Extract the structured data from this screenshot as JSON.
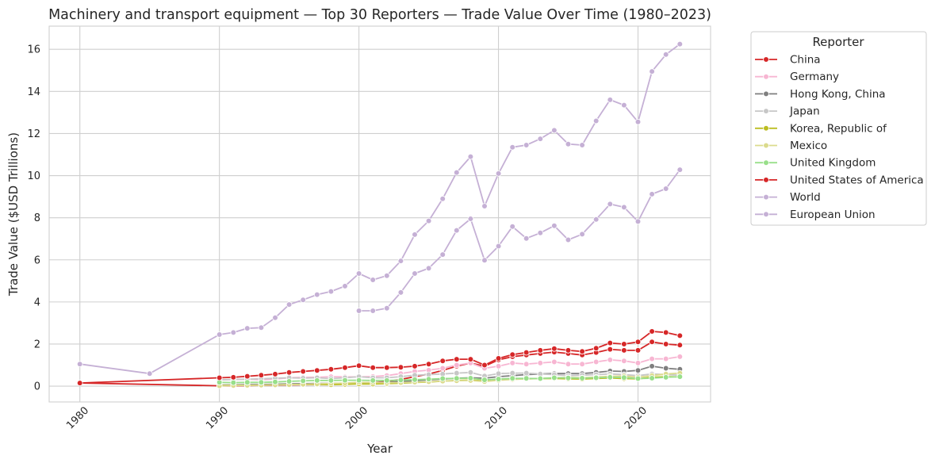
{
  "chart_data": {
    "type": "line",
    "title": "Machinery and transport equipment — Top 30 Reporters — Trade Value Over Time (1980–2023)",
    "xlabel": "Year",
    "ylabel": "Trade Value ($USD Trillions)",
    "xlim": [
      1977.8,
      2025.2
    ],
    "ylim": [
      -0.75,
      17.1
    ],
    "x_ticks": [
      1980,
      1990,
      2000,
      2010,
      2020
    ],
    "y_ticks": [
      0,
      2,
      4,
      6,
      8,
      10,
      12,
      14,
      16
    ],
    "grid": true,
    "legend_title": "Reporter",
    "legend_position": "outside-right",
    "series": [
      {
        "name": "China",
        "color": "#d62728",
        "x": [
          1980,
          1990,
          1991,
          1992,
          1993,
          1994,
          1995,
          1996,
          1997,
          1998,
          1999,
          2000,
          2001,
          2002,
          2003,
          2004,
          2005,
          2006,
          2007,
          2008,
          2009,
          2010,
          2011,
          2012,
          2013,
          2014,
          2015,
          2016,
          2017,
          2018,
          2019,
          2020,
          2021,
          2022,
          2023
        ],
        "y": [
          0.15,
          0.02,
          0.02,
          0.03,
          0.04,
          0.05,
          0.06,
          0.07,
          0.08,
          0.09,
          0.11,
          0.14,
          0.17,
          0.22,
          0.32,
          0.45,
          0.58,
          0.75,
          0.95,
          1.1,
          0.95,
          1.25,
          1.4,
          1.48,
          1.55,
          1.62,
          1.55,
          1.48,
          1.6,
          1.75,
          1.7,
          1.7,
          2.1,
          2.0,
          1.95
        ]
      },
      {
        "name": "Germany",
        "color": "#f7b6d2",
        "x": [
          1990,
          1991,
          1992,
          1993,
          1994,
          1995,
          1996,
          1997,
          1998,
          1999,
          2000,
          2001,
          2002,
          2003,
          2004,
          2005,
          2006,
          2007,
          2008,
          2009,
          2010,
          2011,
          2012,
          2013,
          2014,
          2015,
          2016,
          2017,
          2018,
          2019,
          2020,
          2021,
          2022,
          2023
        ],
        "y": [
          0.3,
          0.32,
          0.34,
          0.3,
          0.34,
          0.4,
          0.42,
          0.42,
          0.45,
          0.44,
          0.44,
          0.46,
          0.5,
          0.6,
          0.7,
          0.76,
          0.85,
          1.0,
          1.1,
          0.85,
          0.95,
          1.1,
          1.05,
          1.1,
          1.15,
          1.05,
          1.05,
          1.15,
          1.25,
          1.2,
          1.1,
          1.3,
          1.3,
          1.4
        ]
      },
      {
        "name": "Hong Kong, China",
        "color": "#7f7f7f",
        "x": [
          1990,
          1991,
          1992,
          1993,
          1994,
          1995,
          1996,
          1997,
          1998,
          1999,
          2000,
          2001,
          2002,
          2003,
          2004,
          2005,
          2006,
          2007,
          2008,
          2009,
          2010,
          2011,
          2012,
          2013,
          2014,
          2015,
          2016,
          2017,
          2018,
          2019,
          2020,
          2021,
          2022,
          2023
        ],
        "y": [
          0.05,
          0.06,
          0.07,
          0.08,
          0.09,
          0.11,
          0.12,
          0.13,
          0.13,
          0.14,
          0.17,
          0.17,
          0.19,
          0.22,
          0.26,
          0.3,
          0.34,
          0.38,
          0.4,
          0.38,
          0.45,
          0.5,
          0.55,
          0.58,
          0.6,
          0.6,
          0.6,
          0.65,
          0.72,
          0.7,
          0.75,
          0.95,
          0.85,
          0.8
        ]
      },
      {
        "name": "Japan",
        "color": "#c7c7c7",
        "x": [
          1990,
          1991,
          1992,
          1993,
          1994,
          1995,
          1996,
          1997,
          1998,
          1999,
          2000,
          2001,
          2002,
          2003,
          2004,
          2005,
          2006,
          2007,
          2008,
          2009,
          2010,
          2011,
          2012,
          2013,
          2014,
          2015,
          2016,
          2017,
          2018,
          2019,
          2020,
          2021,
          2022,
          2023
        ],
        "y": [
          0.3,
          0.32,
          0.33,
          0.35,
          0.38,
          0.4,
          0.38,
          0.4,
          0.36,
          0.4,
          0.45,
          0.4,
          0.4,
          0.45,
          0.52,
          0.55,
          0.58,
          0.62,
          0.65,
          0.48,
          0.6,
          0.62,
          0.62,
          0.58,
          0.55,
          0.5,
          0.52,
          0.55,
          0.58,
          0.55,
          0.5,
          0.58,
          0.55,
          0.52
        ]
      },
      {
        "name": "Korea, Republic of",
        "color": "#bcbd22",
        "x": [
          1990,
          1991,
          1992,
          1993,
          1994,
          1995,
          1996,
          1997,
          1998,
          1999,
          2000,
          2001,
          2002,
          2003,
          2004,
          2005,
          2006,
          2007,
          2008,
          2009,
          2010,
          2011,
          2012,
          2013,
          2014,
          2015,
          2016,
          2017,
          2018,
          2019,
          2020,
          2021,
          2022,
          2023
        ],
        "y": [
          0.03,
          0.04,
          0.04,
          0.05,
          0.06,
          0.08,
          0.08,
          0.08,
          0.07,
          0.09,
          0.11,
          0.1,
          0.12,
          0.14,
          0.18,
          0.2,
          0.24,
          0.27,
          0.29,
          0.25,
          0.31,
          0.34,
          0.35,
          0.36,
          0.37,
          0.35,
          0.34,
          0.37,
          0.39,
          0.36,
          0.35,
          0.42,
          0.45,
          0.44
        ]
      },
      {
        "name": "Mexico",
        "color": "#dbdb8d",
        "x": [
          1990,
          1991,
          1992,
          1993,
          1994,
          1995,
          1996,
          1997,
          1998,
          1999,
          2000,
          2001,
          2002,
          2003,
          2004,
          2005,
          2006,
          2007,
          2008,
          2009,
          2010,
          2011,
          2012,
          2013,
          2014,
          2015,
          2016,
          2017,
          2018,
          2019,
          2020,
          2021,
          2022,
          2023
        ],
        "y": [
          0.02,
          0.03,
          0.04,
          0.05,
          0.06,
          0.07,
          0.09,
          0.11,
          0.13,
          0.15,
          0.18,
          0.17,
          0.17,
          0.17,
          0.19,
          0.21,
          0.24,
          0.26,
          0.27,
          0.22,
          0.28,
          0.32,
          0.35,
          0.37,
          0.4,
          0.41,
          0.4,
          0.43,
          0.47,
          0.48,
          0.42,
          0.5,
          0.58,
          0.62
        ]
      },
      {
        "name": "United Kingdom",
        "color": "#98df8a",
        "x": [
          1990,
          1991,
          1992,
          1993,
          1994,
          1995,
          1996,
          1997,
          1998,
          1999,
          2000,
          2001,
          2002,
          2003,
          2004,
          2005,
          2006,
          2007,
          2008,
          2009,
          2010,
          2011,
          2012,
          2013,
          2014,
          2015,
          2016,
          2017,
          2018,
          2019,
          2020,
          2021,
          2022,
          2023
        ],
        "y": [
          0.18,
          0.17,
          0.18,
          0.18,
          0.2,
          0.23,
          0.25,
          0.27,
          0.27,
          0.28,
          0.28,
          0.27,
          0.27,
          0.29,
          0.31,
          0.33,
          0.36,
          0.37,
          0.38,
          0.3,
          0.34,
          0.37,
          0.37,
          0.36,
          0.4,
          0.39,
          0.38,
          0.4,
          0.42,
          0.41,
          0.36,
          0.38,
          0.42,
          0.45
        ]
      },
      {
        "name": "United States of America",
        "color": "#d62728",
        "x": [
          1980,
          1990,
          1991,
          1992,
          1993,
          1994,
          1995,
          1996,
          1997,
          1998,
          1999,
          2000,
          2001,
          2002,
          2003,
          2004,
          2005,
          2006,
          2007,
          2008,
          2009,
          2010,
          2011,
          2012,
          2013,
          2014,
          2015,
          2016,
          2017,
          2018,
          2019,
          2020,
          2021,
          2022,
          2023
        ],
        "y": [
          0.15,
          0.4,
          0.42,
          0.47,
          0.52,
          0.57,
          0.65,
          0.7,
          0.75,
          0.8,
          0.88,
          0.97,
          0.88,
          0.88,
          0.9,
          0.95,
          1.05,
          1.2,
          1.28,
          1.28,
          1.0,
          1.32,
          1.5,
          1.6,
          1.7,
          1.78,
          1.7,
          1.65,
          1.8,
          2.05,
          2.0,
          2.1,
          2.6,
          2.55,
          2.4
        ]
      },
      {
        "name": "World",
        "color": "#c5b0d5",
        "x": [
          1980,
          1985,
          1990,
          1991,
          1992,
          1993,
          1994,
          1995,
          1996,
          1997,
          1998,
          1999,
          2000,
          2001,
          2002,
          2003,
          2004,
          2005,
          2006,
          2007,
          2008,
          2009,
          2010,
          2011,
          2012,
          2013,
          2014,
          2015,
          2016,
          2017,
          2018,
          2019,
          2020,
          2021,
          2022,
          2023
        ],
        "y": [
          1.05,
          0.6,
          2.45,
          2.55,
          2.75,
          2.78,
          3.25,
          3.88,
          4.1,
          4.35,
          4.5,
          4.75,
          5.35,
          5.05,
          5.25,
          5.95,
          7.2,
          7.85,
          8.9,
          10.15,
          10.9,
          8.55,
          10.1,
          11.35,
          11.45,
          11.75,
          12.15,
          11.5,
          11.45,
          12.6,
          13.6,
          13.35,
          12.55,
          14.95,
          15.75,
          16.25
        ]
      },
      {
        "name": "European Union",
        "color": "#c5b0d5",
        "x": [
          2000,
          2001,
          2002,
          2003,
          2004,
          2005,
          2006,
          2007,
          2008,
          2009,
          2010,
          2011,
          2012,
          2013,
          2014,
          2015,
          2016,
          2017,
          2018,
          2019,
          2020,
          2021,
          2022,
          2023
        ],
        "y": [
          3.58,
          3.58,
          3.7,
          4.45,
          5.35,
          5.6,
          6.25,
          7.4,
          7.95,
          5.98,
          6.65,
          7.58,
          7.02,
          7.28,
          7.62,
          6.95,
          7.22,
          7.92,
          8.65,
          8.5,
          7.82,
          9.12,
          9.38,
          10.28
        ]
      }
    ]
  }
}
